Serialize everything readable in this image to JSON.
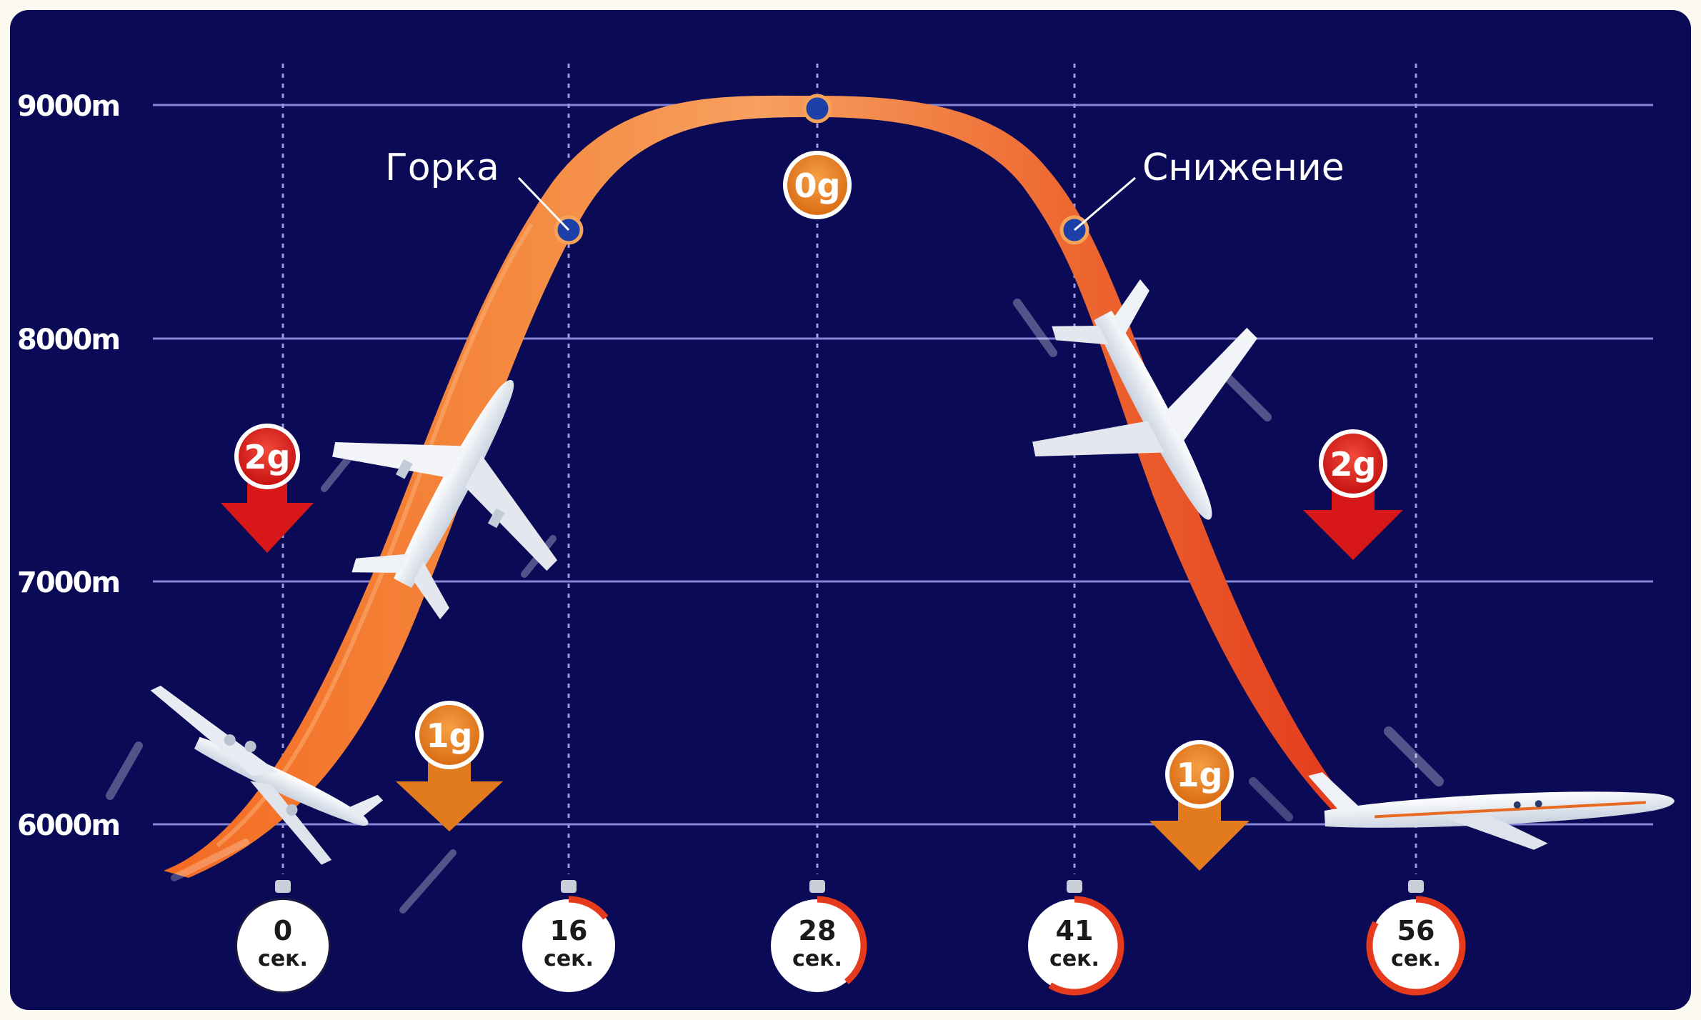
{
  "altitudes": [
    "9000m",
    "8000m",
    "7000m",
    "6000m"
  ],
  "phases": {
    "climb": "Горка",
    "descent": "Снижение"
  },
  "g_badges": {
    "left_2g": "2g",
    "left_1g": "1g",
    "top_0g": "0g",
    "right_2g": "2g",
    "right_1g": "1g"
  },
  "timers": [
    {
      "value": "0",
      "unit": "сек."
    },
    {
      "value": "16",
      "unit": "сек."
    },
    {
      "value": "28",
      "unit": "сек."
    },
    {
      "value": "41",
      "unit": "сек."
    },
    {
      "value": "56",
      "unit": "сек."
    }
  ],
  "colors": {
    "background": "#0b0a56",
    "grid": "#8a8ad8",
    "trajectory_red": "#e8321e",
    "trajectory_orange": "#f48a3a",
    "g_red": "#e02020",
    "g_orange": "#e87a22",
    "marker": "#1c3fa8"
  }
}
